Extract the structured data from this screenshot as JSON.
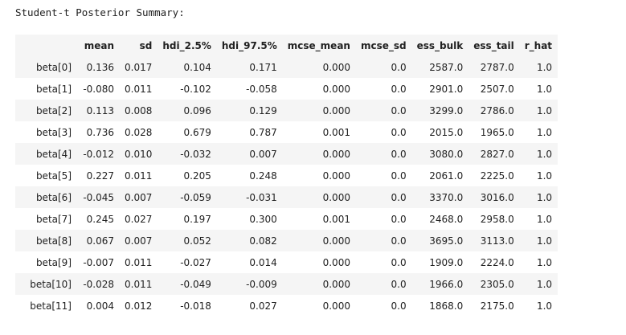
{
  "output": {
    "text": "Student-t Posterior Summary:"
  },
  "table": {
    "columns": [
      "mean",
      "sd",
      "hdi_2.5%",
      "hdi_97.5%",
      "mcse_mean",
      "mcse_sd",
      "ess_bulk",
      "ess_tail",
      "r_hat"
    ],
    "rows": [
      {
        "index": "beta[0]",
        "values": [
          "0.136",
          "0.017",
          "0.104",
          "0.171",
          "0.000",
          "0.0",
          "2587.0",
          "2787.0",
          "1.0"
        ]
      },
      {
        "index": "beta[1]",
        "values": [
          "-0.080",
          "0.011",
          "-0.102",
          "-0.058",
          "0.000",
          "0.0",
          "2901.0",
          "2507.0",
          "1.0"
        ]
      },
      {
        "index": "beta[2]",
        "values": [
          "0.113",
          "0.008",
          "0.096",
          "0.129",
          "0.000",
          "0.0",
          "3299.0",
          "2786.0",
          "1.0"
        ]
      },
      {
        "index": "beta[3]",
        "values": [
          "0.736",
          "0.028",
          "0.679",
          "0.787",
          "0.001",
          "0.0",
          "2015.0",
          "1965.0",
          "1.0"
        ]
      },
      {
        "index": "beta[4]",
        "values": [
          "-0.012",
          "0.010",
          "-0.032",
          "0.007",
          "0.000",
          "0.0",
          "3080.0",
          "2827.0",
          "1.0"
        ]
      },
      {
        "index": "beta[5]",
        "values": [
          "0.227",
          "0.011",
          "0.205",
          "0.248",
          "0.000",
          "0.0",
          "2061.0",
          "2225.0",
          "1.0"
        ]
      },
      {
        "index": "beta[6]",
        "values": [
          "-0.045",
          "0.007",
          "-0.059",
          "-0.031",
          "0.000",
          "0.0",
          "3370.0",
          "3016.0",
          "1.0"
        ]
      },
      {
        "index": "beta[7]",
        "values": [
          "0.245",
          "0.027",
          "0.197",
          "0.300",
          "0.001",
          "0.0",
          "2468.0",
          "2958.0",
          "1.0"
        ]
      },
      {
        "index": "beta[8]",
        "values": [
          "0.067",
          "0.007",
          "0.052",
          "0.082",
          "0.000",
          "0.0",
          "3695.0",
          "3113.0",
          "1.0"
        ]
      },
      {
        "index": "beta[9]",
        "values": [
          "-0.007",
          "0.011",
          "-0.027",
          "0.014",
          "0.000",
          "0.0",
          "1909.0",
          "2224.0",
          "1.0"
        ]
      },
      {
        "index": "beta[10]",
        "values": [
          "-0.028",
          "0.011",
          "-0.049",
          "-0.009",
          "0.000",
          "0.0",
          "1966.0",
          "2305.0",
          "1.0"
        ]
      },
      {
        "index": "beta[11]",
        "values": [
          "0.004",
          "0.012",
          "-0.018",
          "0.027",
          "0.000",
          "0.0",
          "1868.0",
          "2175.0",
          "1.0"
        ]
      }
    ]
  }
}
